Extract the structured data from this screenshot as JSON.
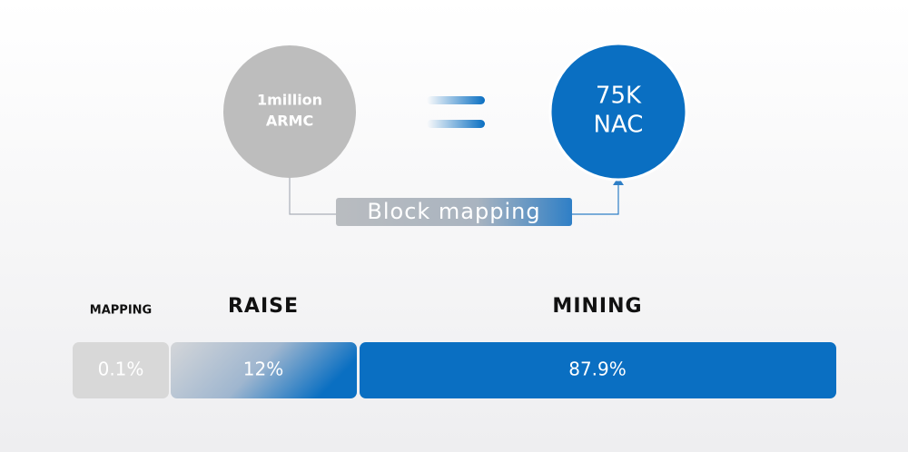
{
  "conversion": {
    "from": {
      "line1": "1million",
      "line2": "ARMC"
    },
    "to": {
      "line1": "75K",
      "line2": "NAC"
    },
    "link_label": "Block mapping"
  },
  "allocation": [
    {
      "name": "MAPPING",
      "value": "0.1%"
    },
    {
      "name": "RAISE",
      "value": "12%"
    },
    {
      "name": "MINING",
      "value": "87.9%"
    }
  ]
}
